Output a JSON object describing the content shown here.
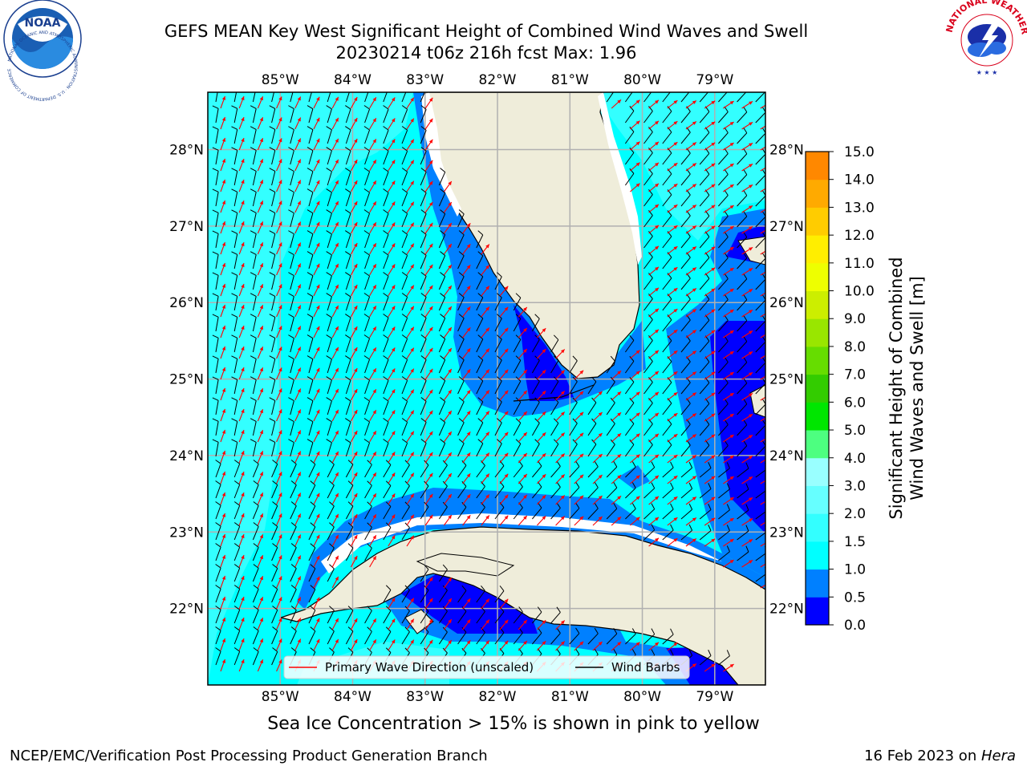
{
  "header": {
    "title_line1": "GEFS MEAN Key West Significant Height of Combined Wind Waves and Swell",
    "title_line2": "20230214 t06z 216h fcst   Max: 1.96"
  },
  "logos": {
    "noaa": {
      "text": "NOAA",
      "ring_text": "NATIONAL OCEANIC AND ATMOSPHERIC ADMINISTRATION · U.S. DEPARTMENT OF COMMERCE"
    },
    "nws": {
      "ring_text": "NATIONAL WEATHER SERVICE"
    }
  },
  "map": {
    "lon_labels": [
      "85°W",
      "84°W",
      "83°W",
      "82°W",
      "81°W",
      "80°W",
      "79°W"
    ],
    "lat_labels": [
      "28°N",
      "27°N",
      "26°N",
      "25°N",
      "24°N",
      "23°N",
      "22°N"
    ],
    "lon_range": [
      -86.0,
      -78.3
    ],
    "lat_range": [
      21.0,
      28.75
    ],
    "ocean_color": "#00ffff",
    "land_color": "#efedda",
    "barb_color": "#000000",
    "wave_arrow_color": "#ff0000"
  },
  "legend": {
    "primary_wave": "Primary Wave Direction (unscaled)",
    "wind_barbs": "Wind Barbs"
  },
  "colorbar": {
    "label_line1": "Significant Height of Combined",
    "label_line2": "Wind Waves and Swell [m]",
    "ticks": [
      "15.0",
      "14.0",
      "13.0",
      "12.0",
      "11.0",
      "10.0",
      "9.0",
      "8.0",
      "7.0",
      "6.0",
      "5.0",
      "4.0",
      "3.0",
      "2.0",
      "1.5",
      "1.0",
      "0.5",
      "0.0"
    ],
    "colors": [
      "#0000ff",
      "#0080ff",
      "#00ffff",
      "#33ffff",
      "#66ffff",
      "#99ffff",
      "#4dff80",
      "#00e600",
      "#33cc00",
      "#66dd00",
      "#99e600",
      "#ccee00",
      "#eeff00",
      "#ffee00",
      "#ffcc00",
      "#ffaa00",
      "#ff8800",
      "#ff6600",
      "#ff3300",
      "#ff0000"
    ]
  },
  "subnote": "Sea Ice Concentration > 15% is shown in pink to yellow",
  "footer": {
    "left": "NCEP/EMC/Verification Post Processing Product Generation Branch",
    "right_prefix": "16 Feb 2023 on ",
    "right_host": "Hera"
  }
}
